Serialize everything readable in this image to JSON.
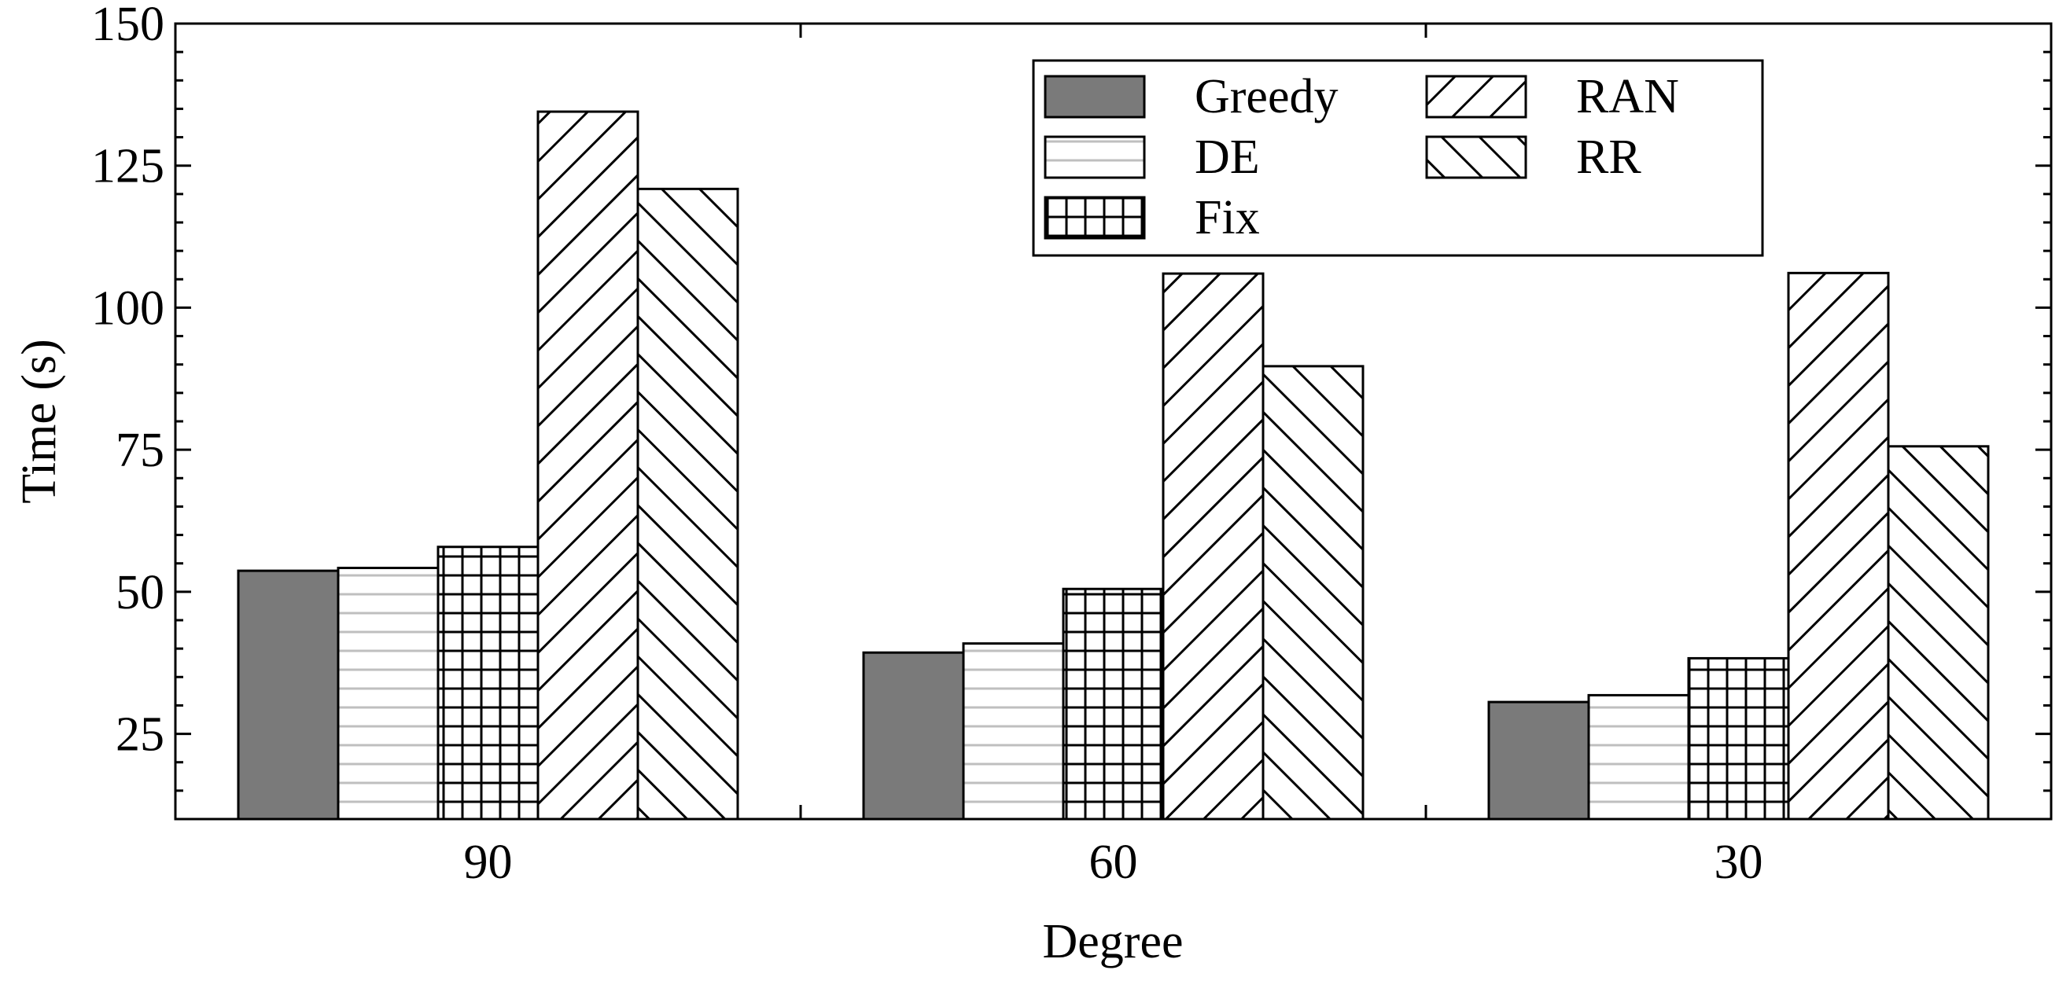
{
  "chart_data": {
    "type": "bar",
    "xlabel": "Degree",
    "ylabel": "Time (s)",
    "categories": [
      "90",
      "60",
      "30"
    ],
    "ylim": [
      10,
      150
    ],
    "yticks": [
      25,
      50,
      75,
      100,
      125,
      150
    ],
    "grid": false,
    "legend_position": "top-right",
    "series": [
      {
        "name": "Greedy",
        "values": [
          53.7,
          39.3,
          30.6
        ],
        "fill": "#7a7a7a",
        "pattern": "solid"
      },
      {
        "name": "DE",
        "values": [
          54.2,
          40.9,
          31.8
        ],
        "fill": "#ffffff",
        "pattern": "horizontal-lines"
      },
      {
        "name": "Fix",
        "values": [
          57.9,
          50.5,
          38.3
        ],
        "fill": "#ffffff",
        "pattern": "grid"
      },
      {
        "name": "RAN",
        "values": [
          134.5,
          106.0,
          106.1
        ],
        "fill": "#ffffff",
        "pattern": "backslash-hatch"
      },
      {
        "name": "RR",
        "values": [
          120.9,
          89.7,
          75.6
        ],
        "fill": "#ffffff",
        "pattern": "slash-hatch"
      }
    ]
  }
}
